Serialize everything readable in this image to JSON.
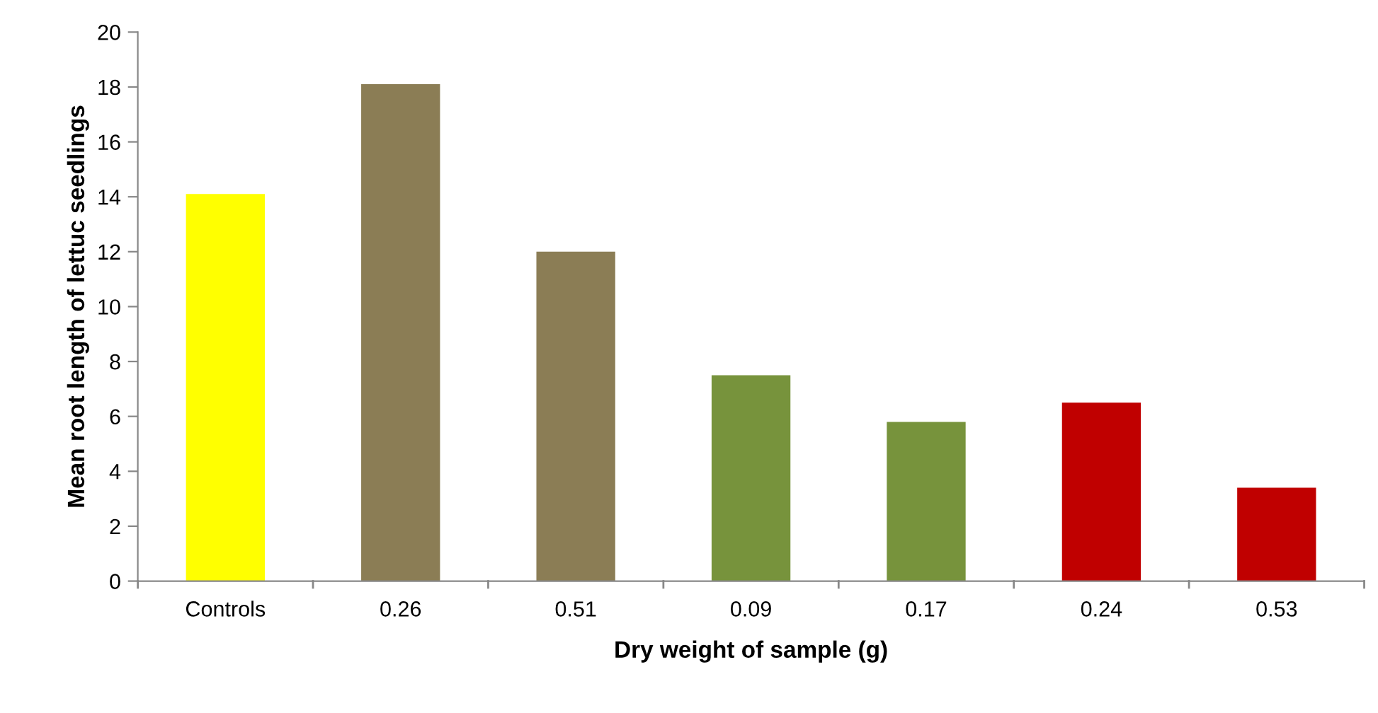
{
  "chart_data": {
    "type": "bar",
    "xlabel": "Dry weight of sample (g)",
    "ylabel": "Mean root length of lettuc seedlings",
    "categories": [
      "Controls",
      "0.26",
      "0.51",
      "0.09",
      "0.17",
      "0.24",
      "0.53"
    ],
    "values": [
      14.1,
      18.1,
      12,
      7.5,
      5.8,
      6.5,
      3.4
    ],
    "colors": [
      "#ffff00",
      "#8b7d55",
      "#8b7d55",
      "#77933c",
      "#77933c",
      "#c00000",
      "#c00000"
    ],
    "ylim": [
      0,
      20
    ],
    "yticks": [
      0,
      2,
      4,
      6,
      8,
      10,
      12,
      14,
      16,
      18,
      20
    ],
    "grid": false,
    "legend": false
  }
}
